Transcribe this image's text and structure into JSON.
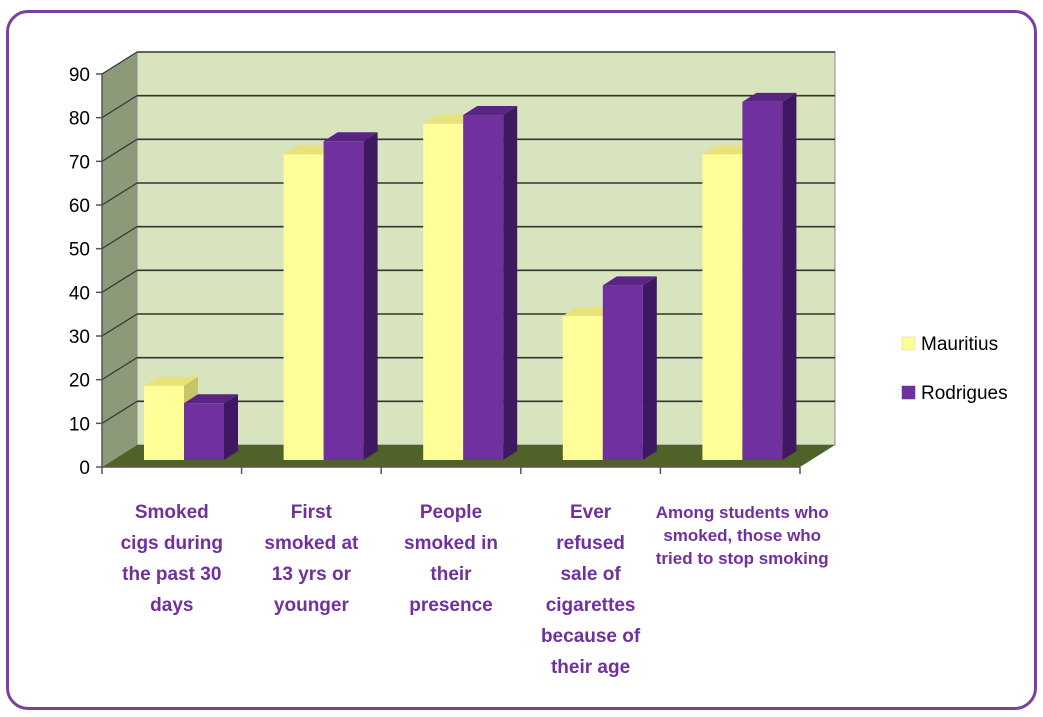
{
  "chart_data": {
    "type": "bar",
    "title": "",
    "xlabel": "",
    "ylabel": "",
    "ylim": [
      0,
      90
    ],
    "yticks": [
      0,
      10,
      20,
      30,
      40,
      50,
      60,
      70,
      80,
      90
    ],
    "categories": [
      [
        "Smoked",
        "cigs during",
        "the past 30",
        "days"
      ],
      [
        "First",
        "smoked at",
        "13 yrs or",
        "younger"
      ],
      [
        "People",
        "smoked in",
        "their",
        "presence"
      ],
      [
        "Ever",
        "refused",
        "sale of",
        "cigarettes",
        "because of",
        "their age"
      ],
      [
        "Among students who",
        "smoked, those who",
        "tried to stop smoking"
      ]
    ],
    "series": [
      {
        "name": "Mauritius",
        "color": "#ffff99",
        "top_color": "#e8e27a",
        "side_color": "#c9c36a",
        "values": [
          17,
          70,
          77,
          33,
          70
        ]
      },
      {
        "name": "Rodrigues",
        "color": "#7030a0",
        "top_color": "#5a2484",
        "side_color": "#3f1862",
        "values": [
          13,
          73,
          79,
          40,
          82
        ]
      }
    ],
    "grid": true,
    "legend_position": "right",
    "plot_colors": {
      "wall": "#d7e4bd",
      "side_wall": "#8d9a7a",
      "floor": "#4f6228",
      "gridline": "#333333"
    }
  }
}
